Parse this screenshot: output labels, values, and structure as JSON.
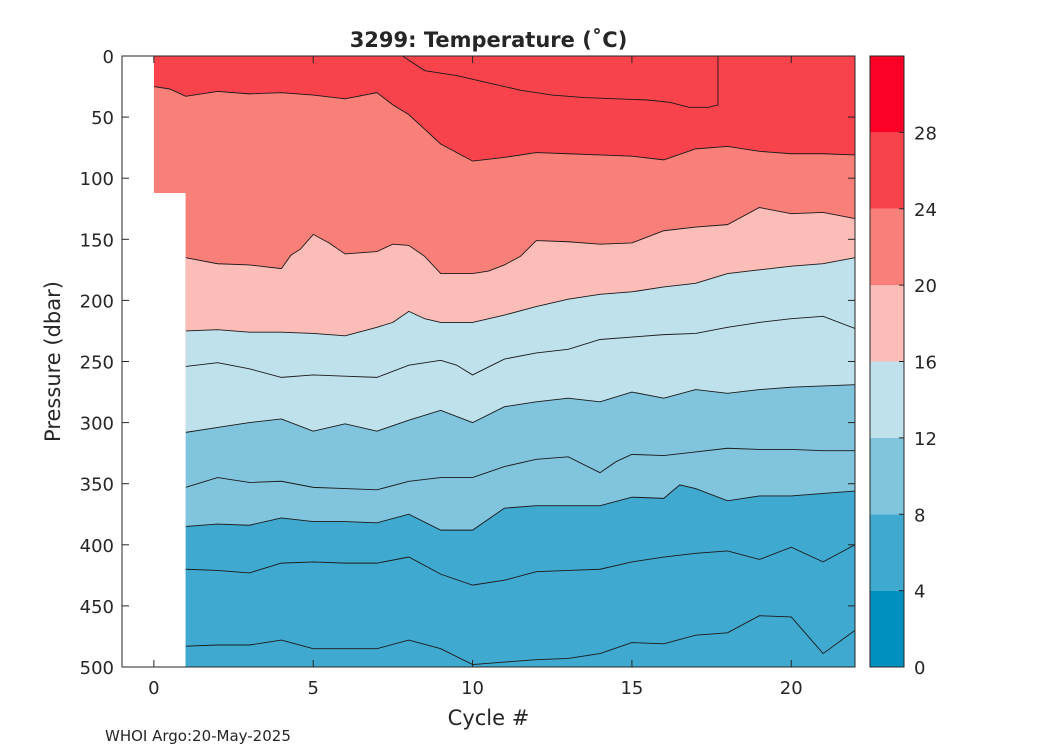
{
  "chart_data": {
    "type": "heatmap",
    "title": "3299:  Temperature (˚C)",
    "xlabel": "Cycle #",
    "ylabel": "Pressure (dbar)",
    "xlim": [
      -1,
      22
    ],
    "ylim": [
      0,
      500
    ],
    "y_reversed": true,
    "x_ticks": [
      0,
      5,
      10,
      15,
      20
    ],
    "y_ticks": [
      0,
      50,
      100,
      150,
      200,
      250,
      300,
      350,
      400,
      450,
      500
    ],
    "colorbar": {
      "range": [
        0,
        32
      ],
      "ticks": [
        0,
        4,
        8,
        12,
        16,
        20,
        24,
        28
      ],
      "levels": [
        {
          "from": 0,
          "to": 4,
          "color": "#0090bf"
        },
        {
          "from": 4,
          "to": 8,
          "color": "#40a9cf"
        },
        {
          "from": 8,
          "to": 12,
          "color": "#80c4de"
        },
        {
          "from": 12,
          "to": 16,
          "color": "#bfe1ec"
        },
        {
          "from": 16,
          "to": 20,
          "color": "#fcbcb7"
        },
        {
          "from": 20,
          "to": 24,
          "color": "#f98079"
        },
        {
          "from": 24,
          "to": 28,
          "color": "#f9434c"
        },
        {
          "from": 28,
          "to": 32,
          "color": "#fc0028"
        }
      ]
    },
    "isotherms": [
      {
        "level": 26,
        "x": [
          7.8,
          8.5,
          9.5,
          10.5,
          11.5,
          12.5,
          13.5,
          14.5,
          15.5,
          16.2,
          16.8,
          17.4,
          17.7,
          17.7
        ],
        "y": [
          0,
          12,
          16,
          22,
          28,
          32,
          34,
          35,
          36,
          38,
          42,
          42,
          40,
          0
        ]
      },
      {
        "level": 22,
        "x": [
          0,
          0.5,
          1,
          2,
          3,
          4,
          5,
          6,
          7,
          7.5,
          8,
          8.5,
          9,
          10,
          11,
          12,
          13,
          14,
          15,
          16,
          17,
          18,
          19,
          20,
          21,
          22
        ],
        "y": [
          25,
          27,
          33,
          29,
          31,
          30,
          32,
          35,
          30,
          40,
          48,
          60,
          72,
          86,
          83,
          79,
          80,
          81,
          82,
          85,
          76,
          74,
          78,
          80,
          80,
          81
        ]
      },
      {
        "level": 18,
        "x": [
          1,
          2,
          3,
          4,
          4.3,
          4.6,
          5,
          5.5,
          6,
          7,
          7.5,
          8,
          8.5,
          9,
          10,
          10.5,
          11,
          11.5,
          12,
          13,
          14,
          15,
          16,
          17,
          18,
          19,
          20,
          21,
          22
        ],
        "y": [
          165,
          170,
          171,
          174,
          163,
          158,
          146,
          153,
          162,
          160,
          154,
          155,
          164,
          178,
          178,
          176,
          171,
          164,
          151,
          152,
          154,
          153,
          143,
          140,
          138,
          124,
          129,
          128,
          133
        ]
      },
      {
        "level": 16,
        "x": [
          1,
          2,
          3,
          4,
          5,
          6,
          7,
          7.5,
          8,
          8.5,
          9,
          10,
          11,
          12,
          13,
          14,
          15,
          16,
          17,
          18,
          19,
          20,
          21,
          22
        ],
        "y": [
          225,
          224,
          226,
          226,
          227,
          229,
          222,
          218,
          209,
          215,
          218,
          218,
          212,
          205,
          199,
          195,
          193,
          189,
          186,
          178,
          175,
          172,
          170,
          165
        ]
      },
      {
        "level": 14,
        "x": [
          1,
          2,
          3,
          4,
          5,
          6,
          7,
          8,
          9,
          9.5,
          10,
          11,
          12,
          13,
          14,
          15,
          16,
          17,
          18,
          19,
          20,
          21,
          22
        ],
        "y": [
          254,
          251,
          256,
          263,
          261,
          262,
          263,
          253,
          249,
          253,
          261,
          248,
          243,
          240,
          232,
          230,
          228,
          227,
          222,
          218,
          215,
          213,
          223
        ]
      },
      {
        "level": 12,
        "x": [
          1,
          2,
          3,
          4,
          5,
          6,
          7,
          8,
          9,
          10,
          11,
          12,
          13,
          14,
          15,
          16,
          17,
          18,
          19,
          20,
          21,
          22
        ],
        "y": [
          308,
          304,
          300,
          297,
          307,
          301,
          307,
          298,
          290,
          300,
          287,
          283,
          280,
          283,
          275,
          280,
          273,
          276,
          273,
          271,
          270,
          269
        ]
      },
      {
        "level": 10,
        "x": [
          1,
          2,
          3,
          4,
          5,
          6,
          7,
          8,
          9,
          10,
          11,
          12,
          13,
          14,
          14.5,
          15,
          16,
          17,
          18,
          19,
          20,
          21,
          22
        ],
        "y": [
          353,
          345,
          349,
          348,
          353,
          354,
          355,
          348,
          345,
          345,
          336,
          330,
          328,
          341,
          332,
          326,
          327,
          324,
          321,
          322,
          322,
          323,
          323
        ]
      },
      {
        "level": 8,
        "x": [
          1,
          2,
          3,
          4,
          5,
          6,
          7,
          8,
          9,
          10,
          11,
          12,
          13,
          14,
          15,
          16,
          16.5,
          17,
          18,
          19,
          20,
          21,
          22
        ],
        "y": [
          385,
          383,
          384,
          378,
          381,
          381,
          382,
          375,
          388,
          388,
          370,
          368,
          368,
          368,
          361,
          362,
          351,
          354,
          364,
          360,
          360,
          358,
          356
        ]
      },
      {
        "level": 6,
        "x": [
          1,
          2,
          3,
          4,
          5,
          6,
          7,
          8,
          9,
          10,
          11,
          12,
          13,
          14,
          15,
          16,
          17,
          18,
          19,
          20,
          21,
          22
        ],
        "y": [
          420,
          421,
          423,
          415,
          414,
          415,
          415,
          410,
          424,
          433,
          429,
          422,
          421,
          420,
          414,
          410,
          407,
          405,
          412,
          402,
          414,
          400
        ]
      },
      {
        "level": 5,
        "x": [
          1,
          2,
          3,
          4,
          5,
          6,
          7,
          8,
          9,
          10,
          11,
          12,
          13,
          14,
          15,
          16,
          17,
          18,
          19,
          20,
          21,
          22
        ],
        "y": [
          483,
          482,
          482,
          478,
          485,
          485,
          485,
          478,
          485,
          498,
          496,
          494,
          493,
          489,
          480,
          481,
          474,
          472,
          458,
          459,
          489,
          470
        ]
      }
    ],
    "data_extent": {
      "x": [
        0,
        0,
        1,
        1,
        22,
        22
      ],
      "y": [
        0,
        112,
        112,
        500,
        500,
        0
      ]
    }
  },
  "footer": {
    "text": "WHOI Argo:20-May-2025"
  }
}
